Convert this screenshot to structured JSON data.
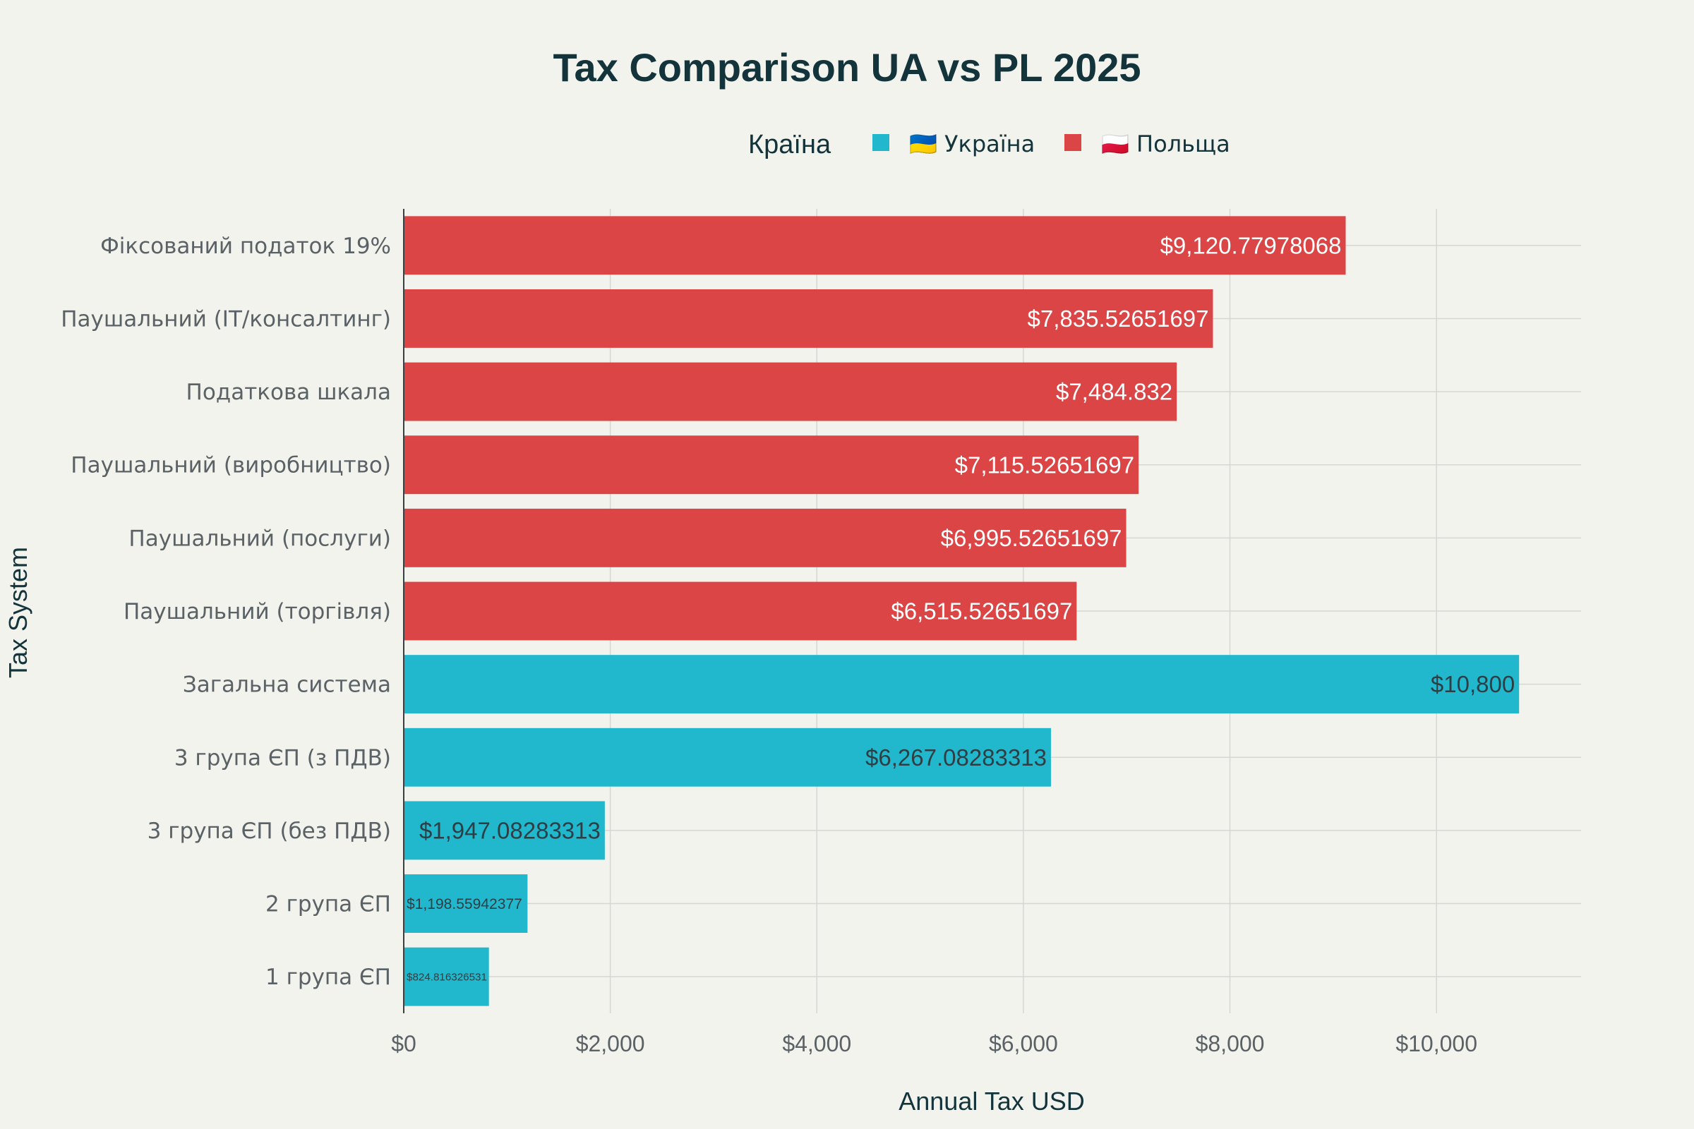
{
  "chart_data": {
    "type": "bar",
    "orientation": "horizontal",
    "title": "Tax Comparison UA vs PL 2025",
    "xlabel": "Annual Tax USD",
    "ylabel": "Tax System",
    "xlim": [
      0,
      11400
    ],
    "x_ticks": [
      0,
      2000,
      4000,
      6000,
      8000,
      10000
    ],
    "x_tick_labels": [
      "$0",
      "$2,000",
      "$4,000",
      "$6,000",
      "$8,000",
      "$10,000"
    ],
    "grid": true,
    "legend": {
      "title": "Країна",
      "position": "top-center",
      "entries": [
        {
          "name": "🇺🇦 Україна",
          "color": "#21b8cd"
        },
        {
          "name": "🇵🇱 Польща",
          "color": "#db4545"
        }
      ]
    },
    "bars": [
      {
        "category": "Фіксований податок 19%",
        "value": 9120.77978068,
        "label": "$9,120.77978068",
        "series": "🇵🇱 Польща"
      },
      {
        "category": "Паушальний (IT/консалтинг)",
        "value": 7835.52651697,
        "label": "$7,835.52651697",
        "series": "🇵🇱 Польща"
      },
      {
        "category": "Податкова шкала",
        "value": 7484.832,
        "label": "$7,484.832",
        "series": "🇵🇱 Польща"
      },
      {
        "category": "Паушальний (виробництво)",
        "value": 7115.52651697,
        "label": "$7,115.52651697",
        "series": "🇵🇱 Польща"
      },
      {
        "category": "Паушальний (послуги)",
        "value": 6995.52651697,
        "label": "$6,995.52651697",
        "series": "🇵🇱 Польща"
      },
      {
        "category": "Паушальний (торгівля)",
        "value": 6515.52651697,
        "label": "$6,515.52651697",
        "series": "🇵🇱 Польща"
      },
      {
        "category": "Загальна система",
        "value": 10800,
        "label": "$10,800",
        "series": "🇺🇦 Україна"
      },
      {
        "category": "3 група ЄП (з ПДВ)",
        "value": 6267.08283313,
        "label": "$6,267.08283313",
        "series": "🇺🇦 Україна"
      },
      {
        "category": "3 група ЄП (без ПДВ)",
        "value": 1947.08283313,
        "label": "$1,947.08283313",
        "series": "🇺🇦 Україна"
      },
      {
        "category": "2 група ЄП",
        "value": 1198.55942377,
        "label": "$1,198.55942377",
        "series": "🇺🇦 Україна"
      },
      {
        "category": "1 група ЄП",
        "value": 824.816326531,
        "label": "$824.816326531",
        "series": "🇺🇦 Україна"
      }
    ]
  },
  "colors": {
    "ukraine": "#21b8cd",
    "poland": "#db4545",
    "background": "#f3f3ee",
    "grid": "#d6d6d2",
    "text_dark": "#13343b",
    "text_muted": "#5b6266"
  }
}
